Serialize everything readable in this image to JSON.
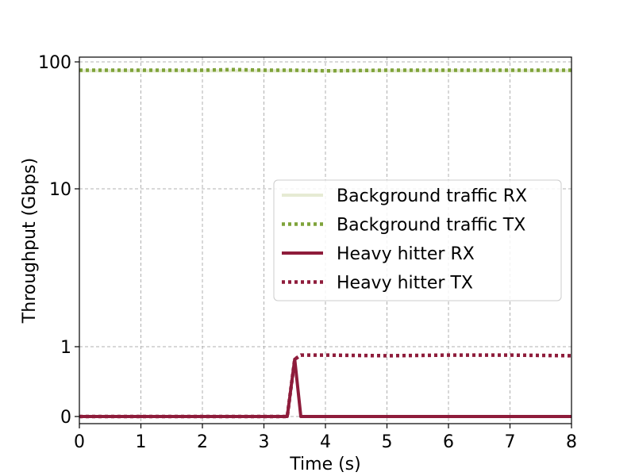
{
  "chart_data": {
    "type": "line",
    "title": "",
    "xlabel": "Time (s)",
    "ylabel": "Throughput (Gbps)",
    "xlim": [
      0,
      8
    ],
    "ylim": [
      0,
      100
    ],
    "y_scale": "symlog",
    "x_ticks": [
      "0",
      "1",
      "2",
      "3",
      "4",
      "5",
      "6",
      "7",
      "8"
    ],
    "y_ticks": [
      "0",
      "1",
      "10",
      "100"
    ],
    "grid": true,
    "legend_position": "center-right",
    "series": [
      {
        "name": "Background traffic RX",
        "color": "#e6ebd4",
        "line_style": "solid",
        "x": [
          0,
          8
        ],
        "y": [
          85,
          85
        ]
      },
      {
        "name": "Background traffic TX",
        "color": "#7fa33a",
        "line_style": "dotted",
        "x": [
          0,
          1,
          2,
          2.5,
          3,
          3.5,
          4,
          5,
          6,
          7,
          8
        ],
        "y": [
          86,
          86,
          86,
          87,
          86,
          86,
          85,
          86,
          86,
          86,
          86
        ]
      },
      {
        "name": "Heavy hitter RX",
        "color": "#8e1c3b",
        "line_style": "solid",
        "x": [
          0,
          3.38,
          3.5,
          3.6,
          8
        ],
        "y": [
          0,
          0,
          0.82,
          0,
          0
        ]
      },
      {
        "name": "Heavy hitter TX",
        "color": "#8e1c3b",
        "line_style": "dotted",
        "x": [
          0,
          3.38,
          3.5,
          3.6,
          4,
          5,
          6,
          7,
          8
        ],
        "y": [
          0,
          0,
          0.82,
          0.88,
          0.88,
          0.87,
          0.88,
          0.88,
          0.87
        ]
      }
    ]
  }
}
